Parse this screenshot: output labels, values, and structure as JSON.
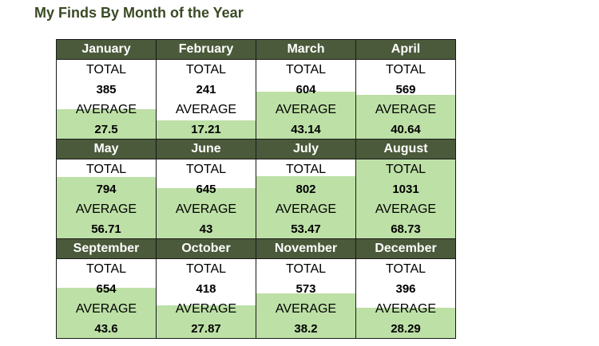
{
  "title": "My Finds By Month of the Year",
  "labels": {
    "total": "TOTAL",
    "average": "AVERAGE"
  },
  "colors": {
    "header_bg": "#4b5a3a",
    "fill": "#bde0a6",
    "title": "#3a4a24"
  },
  "max_total": 1031,
  "months": [
    {
      "name": "January",
      "total": "385",
      "average": "27.5"
    },
    {
      "name": "February",
      "total": "241",
      "average": "17.21"
    },
    {
      "name": "March",
      "total": "604",
      "average": "43.14"
    },
    {
      "name": "April",
      "total": "569",
      "average": "40.64"
    },
    {
      "name": "May",
      "total": "794",
      "average": "56.71"
    },
    {
      "name": "June",
      "total": "645",
      "average": "43"
    },
    {
      "name": "July",
      "total": "802",
      "average": "53.47"
    },
    {
      "name": "August",
      "total": "1031",
      "average": "68.73"
    },
    {
      "name": "September",
      "total": "654",
      "average": "43.6"
    },
    {
      "name": "October",
      "total": "418",
      "average": "27.87"
    },
    {
      "name": "November",
      "total": "573",
      "average": "38.2"
    },
    {
      "name": "December",
      "total": "396",
      "average": "28.29"
    }
  ]
}
